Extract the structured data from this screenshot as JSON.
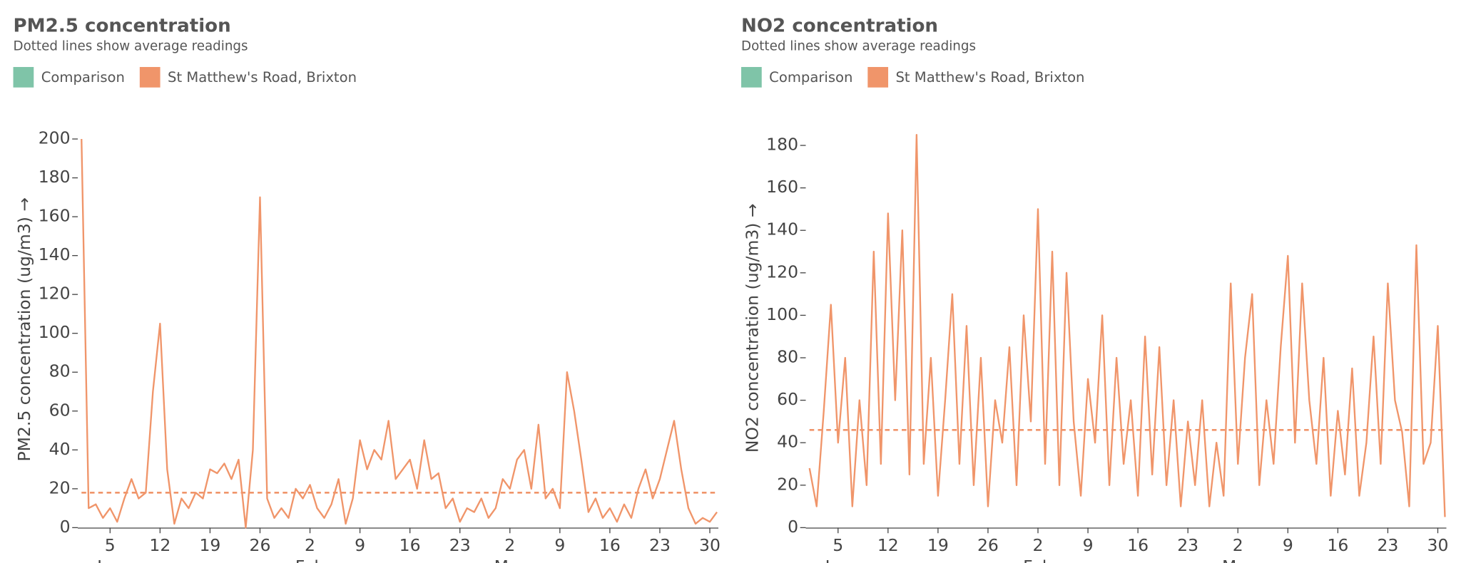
{
  "chart_data": [
    {
      "type": "line",
      "title": "PM2.5 concentration",
      "subtitle": "Dotted lines show average readings",
      "ylabel": "PM2.5 concentration (ug/m3) →",
      "xlim": [
        1,
        90.2
      ],
      "ylim": [
        0,
        204
      ],
      "yticks": [
        0,
        20,
        40,
        60,
        80,
        100,
        120,
        140,
        160,
        180,
        200
      ],
      "xticks": [
        {
          "value": 5,
          "label": "5"
        },
        {
          "value": 12,
          "label": "12"
        },
        {
          "value": 19,
          "label": "19"
        },
        {
          "value": 26,
          "label": "26"
        },
        {
          "value": 33,
          "label": "2"
        },
        {
          "value": 40,
          "label": "9"
        },
        {
          "value": 47,
          "label": "16"
        },
        {
          "value": 54,
          "label": "23"
        },
        {
          "value": 61,
          "label": "2"
        },
        {
          "value": 68,
          "label": "9"
        },
        {
          "value": 75,
          "label": "16"
        },
        {
          "value": 82,
          "label": "23"
        },
        {
          "value": 89,
          "label": "30"
        }
      ],
      "month_labels": [
        {
          "value": 5,
          "label": "Jan"
        },
        {
          "value": 33,
          "label": "Feb"
        },
        {
          "value": 61,
          "label": "Mar"
        }
      ],
      "x": [
        1,
        2,
        3,
        4,
        5,
        6,
        7,
        8,
        9,
        10,
        11,
        12,
        13,
        14,
        15,
        16,
        17,
        18,
        19,
        20,
        21,
        22,
        23,
        24,
        25,
        26,
        27,
        28,
        29,
        30,
        31,
        32,
        33,
        34,
        35,
        36,
        37,
        38,
        39,
        40,
        41,
        42,
        43,
        44,
        45,
        46,
        47,
        48,
        49,
        50,
        51,
        52,
        53,
        54,
        55,
        56,
        57,
        58,
        59,
        60,
        61,
        62,
        63,
        64,
        65,
        66,
        67,
        68,
        69,
        70,
        71,
        72,
        73,
        74,
        75,
        76,
        77,
        78,
        79,
        80,
        81,
        82,
        83,
        84,
        85,
        86,
        87,
        88,
        89,
        90
      ],
      "series": [
        {
          "name": "Comparison",
          "color": "#7fc4a8",
          "values": null
        },
        {
          "name": "St Matthew's Road, Brixton",
          "color": "#f0956a",
          "average": 18,
          "values": [
            200,
            10,
            12,
            5,
            10,
            3,
            15,
            25,
            15,
            18,
            70,
            105,
            30,
            2,
            15,
            10,
            18,
            15,
            30,
            28,
            33,
            25,
            35,
            0,
            40,
            170,
            15,
            5,
            10,
            5,
            20,
            15,
            22,
            10,
            5,
            12,
            25,
            2,
            15,
            45,
            30,
            40,
            35,
            55,
            25,
            30,
            35,
            20,
            45,
            25,
            28,
            10,
            15,
            3,
            10,
            8,
            15,
            5,
            10,
            25,
            20,
            35,
            40,
            20,
            53,
            15,
            20,
            10,
            80,
            60,
            35,
            8,
            15,
            5,
            10,
            3,
            12,
            5,
            20,
            30,
            15,
            25,
            40,
            55,
            30,
            10,
            2,
            5,
            3,
            8
          ]
        }
      ]
    },
    {
      "type": "line",
      "title": "NO2 concentration",
      "subtitle": "Dotted lines show average readings",
      "ylabel": "NO2 concentration (ug/m3) →",
      "xlim": [
        1,
        90.2
      ],
      "ylim": [
        0,
        188
      ],
      "yticks": [
        0,
        20,
        40,
        60,
        80,
        100,
        120,
        140,
        160,
        180
      ],
      "xticks": [
        {
          "value": 5,
          "label": "5"
        },
        {
          "value": 12,
          "label": "12"
        },
        {
          "value": 19,
          "label": "19"
        },
        {
          "value": 26,
          "label": "26"
        },
        {
          "value": 33,
          "label": "2"
        },
        {
          "value": 40,
          "label": "9"
        },
        {
          "value": 47,
          "label": "16"
        },
        {
          "value": 54,
          "label": "23"
        },
        {
          "value": 61,
          "label": "2"
        },
        {
          "value": 68,
          "label": "9"
        },
        {
          "value": 75,
          "label": "16"
        },
        {
          "value": 82,
          "label": "23"
        },
        {
          "value": 89,
          "label": "30"
        }
      ],
      "month_labels": [
        {
          "value": 5,
          "label": "Jan"
        },
        {
          "value": 33,
          "label": "Feb"
        },
        {
          "value": 61,
          "label": "Mar"
        }
      ],
      "x": [
        1,
        2,
        3,
        4,
        5,
        6,
        7,
        8,
        9,
        10,
        11,
        12,
        13,
        14,
        15,
        16,
        17,
        18,
        19,
        20,
        21,
        22,
        23,
        24,
        25,
        26,
        27,
        28,
        29,
        30,
        31,
        32,
        33,
        34,
        35,
        36,
        37,
        38,
        39,
        40,
        41,
        42,
        43,
        44,
        45,
        46,
        47,
        48,
        49,
        50,
        51,
        52,
        53,
        54,
        55,
        56,
        57,
        58,
        59,
        60,
        61,
        62,
        63,
        64,
        65,
        66,
        67,
        68,
        69,
        70,
        71,
        72,
        73,
        74,
        75,
        76,
        77,
        78,
        79,
        80,
        81,
        82,
        83,
        84,
        85,
        86,
        87,
        88,
        89,
        90
      ],
      "series": [
        {
          "name": "Comparison",
          "color": "#7fc4a8",
          "values": null
        },
        {
          "name": "St Matthew's Road, Brixton",
          "color": "#f0956a",
          "average": 46,
          "values": [
            28,
            10,
            55,
            105,
            40,
            80,
            10,
            60,
            20,
            130,
            30,
            148,
            60,
            140,
            25,
            185,
            30,
            80,
            15,
            60,
            110,
            30,
            95,
            20,
            80,
            10,
            60,
            40,
            85,
            20,
            100,
            50,
            150,
            30,
            130,
            20,
            120,
            50,
            15,
            70,
            40,
            100,
            20,
            80,
            30,
            60,
            15,
            90,
            25,
            85,
            20,
            60,
            10,
            50,
            20,
            60,
            10,
            40,
            15,
            115,
            30,
            80,
            110,
            20,
            60,
            30,
            85,
            128,
            40,
            115,
            60,
            30,
            80,
            15,
            55,
            25,
            75,
            15,
            40,
            90,
            30,
            115,
            60,
            45,
            10,
            133,
            30,
            40,
            95,
            5
          ]
        }
      ]
    }
  ]
}
